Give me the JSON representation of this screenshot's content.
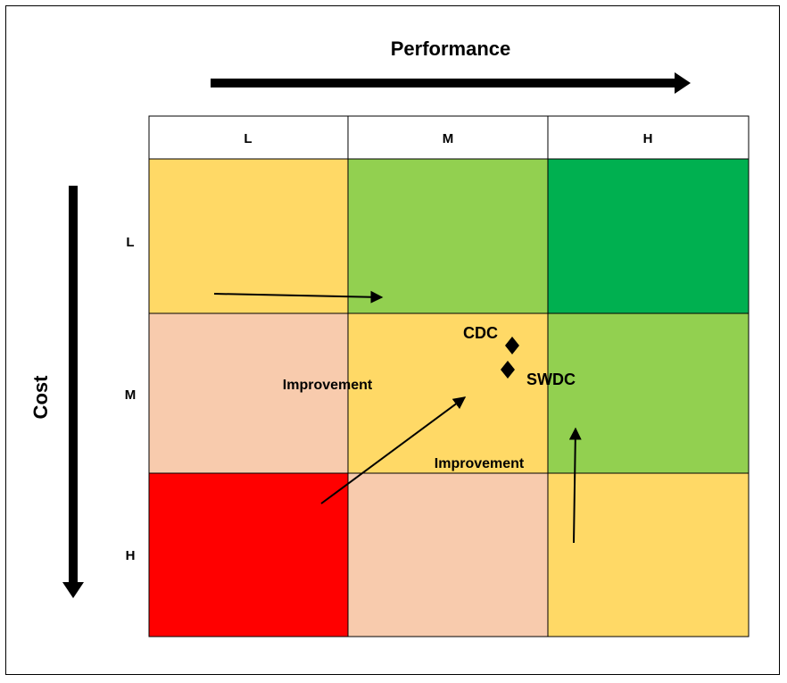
{
  "title": "Performance",
  "y_axis_label": "Cost",
  "columns": [
    "L",
    "M",
    "H"
  ],
  "rows": [
    "L",
    "M",
    "H"
  ],
  "cell_colors": [
    [
      "#FFD966",
      "#92D050",
      "#00B050"
    ],
    [
      "#F8CBAD",
      "#FFD966",
      "#92D050"
    ],
    [
      "#FF0000",
      "#F8CBAD",
      "#FFD966"
    ]
  ],
  "points": [
    {
      "label": "CDC"
    },
    {
      "label": "SWDC"
    }
  ],
  "annotations": {
    "improvement_left": "Improvement",
    "improvement_bottom": "Improvement"
  }
}
